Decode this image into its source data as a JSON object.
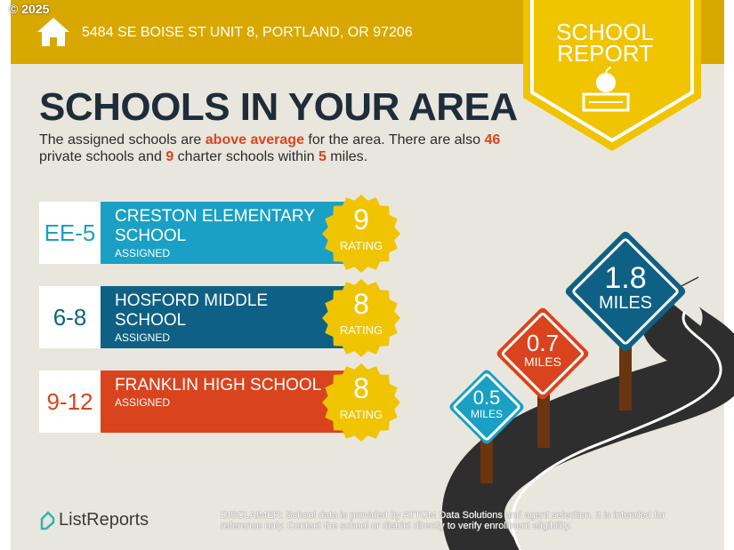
{
  "copyright": "© 2025",
  "address": "5484 SE BOISE ST UNIT 8, PORTLAND, OR 97206",
  "ribbon": {
    "line1": "SCHOOL",
    "line2": "REPORT"
  },
  "title": "SCHOOLS IN YOUR AREA",
  "summary": {
    "p1": "The assigned schools are ",
    "highlight": "above average",
    "p2": " for the area. There are also ",
    "private_count": "46",
    "p3": " private schools and ",
    "charter_count": "9",
    "p4": " charter schools within ",
    "radius": "5",
    "p5": " miles."
  },
  "schools": [
    {
      "grades": "EE-5",
      "name": "CRESTON ELEMENTARY SCHOOL",
      "status": "ASSIGNED",
      "rating": "9",
      "rating_label": "RATING",
      "color": "#1aa0c4",
      "grade_color": "#1aa0c4"
    },
    {
      "grades": "6-8",
      "name": "HOSFORD MIDDLE SCHOOL",
      "status": "ASSIGNED",
      "rating": "8",
      "rating_label": "RATING",
      "color": "#0e6185",
      "grade_color": "#0e6185"
    },
    {
      "grades": "9-12",
      "name": "FRANKLIN HIGH SCHOOL",
      "status": "ASSIGNED",
      "rating": "8",
      "rating_label": "RATING",
      "color": "#d9441e",
      "grade_color": "#d9441e"
    }
  ],
  "distances": [
    {
      "value": "0.5",
      "unit": "MILES",
      "color": "#1aa0c4"
    },
    {
      "value": "0.7",
      "unit": "MILES",
      "color": "#d9441e"
    },
    {
      "value": "1.8",
      "unit": "MILES",
      "color": "#0e6185"
    }
  ],
  "logo": "ListReports",
  "disclaimer": {
    "label": "DISCLAIMER:",
    "text": " School data is provided by ATTOM Data Solutions and agent selection. It is intended for reference only. Contact the school or district directly to verify enrollment eligibility."
  }
}
